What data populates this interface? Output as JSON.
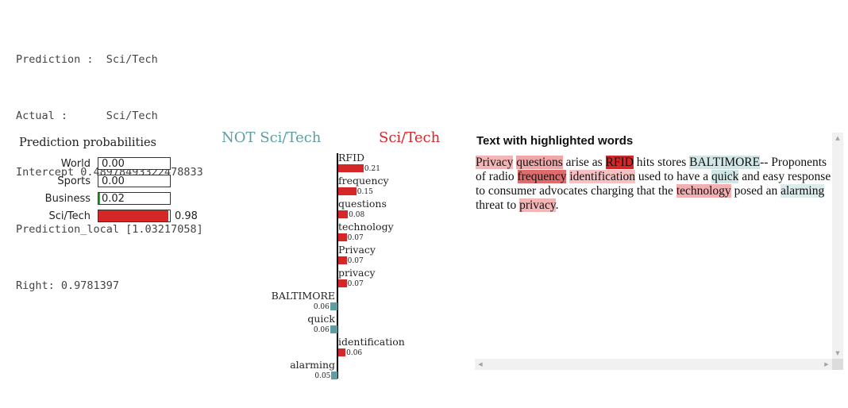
{
  "console": {
    "lines": [
      "Prediction :  Sci/Tech",
      "Actual :      Sci/Tech",
      "Intercept 0.48978493322478833",
      "Prediction_local [1.03217058]",
      "Right: 0.9781397"
    ]
  },
  "probabilities": {
    "title": "Prediction probabilities",
    "items": [
      {
        "label": "World",
        "value_text": "0.00",
        "value": 0.0,
        "color": "#3366cc"
      },
      {
        "label": "Sports",
        "value_text": "0.00",
        "value": 0.0,
        "color": "#ff9900"
      },
      {
        "label": "Business",
        "value_text": "0.02",
        "value": 0.02,
        "color": "#2ca02c"
      },
      {
        "label": "Sci/Tech",
        "value_text": "0.98",
        "value": 0.98,
        "color": "#d62728"
      }
    ]
  },
  "chart_data": {
    "type": "bar",
    "orientation": "horizontal",
    "negative_label": "NOT Sci/Tech",
    "positive_label": "Sci/Tech",
    "negative_color": "#5f9ea0",
    "positive_color": "#d62728",
    "features": [
      {
        "name": "RFID",
        "value": 0.21,
        "value_text": "0.21"
      },
      {
        "name": "frequency",
        "value": 0.15,
        "value_text": "0.15"
      },
      {
        "name": "questions",
        "value": 0.08,
        "value_text": "0.08"
      },
      {
        "name": "technology",
        "value": 0.07,
        "value_text": "0.07"
      },
      {
        "name": "Privacy",
        "value": 0.07,
        "value_text": "0.07"
      },
      {
        "name": "privacy",
        "value": 0.07,
        "value_text": "0.07"
      },
      {
        "name": "BALTIMORE",
        "value": -0.06,
        "value_text": "0.06"
      },
      {
        "name": "quick",
        "value": -0.06,
        "value_text": "0.06"
      },
      {
        "name": "identification",
        "value": 0.06,
        "value_text": "0.06"
      },
      {
        "name": "alarming",
        "value": -0.05,
        "value_text": "0.05"
      }
    ]
  },
  "highlighted_text": {
    "title": "Text with highlighted words",
    "segments": [
      {
        "text": "Privacy",
        "hl": "#f4b5b7"
      },
      {
        "text": " "
      },
      {
        "text": "questions",
        "hl": "#f0a7aa"
      },
      {
        "text": " arise as "
      },
      {
        "text": "RFID",
        "hl": "#d62728"
      },
      {
        "text": " hits stores "
      },
      {
        "text": "BALTIMORE",
        "hl": "#d2e6e6"
      },
      {
        "text": "-- Proponents of radio "
      },
      {
        "text": "frequency",
        "hl": "#e06b6d"
      },
      {
        "text": " "
      },
      {
        "text": "identification",
        "hl": "#f6c1c3"
      },
      {
        "text": " used to have a "
      },
      {
        "text": "quick",
        "hl": "#d2e6e6"
      },
      {
        "text": " and easy response to consumer advocates charging that the "
      },
      {
        "text": "technology",
        "hl": "#f2b0b2"
      },
      {
        "text": " posed an "
      },
      {
        "text": "alarming",
        "hl": "#dcebeb"
      },
      {
        "text": " threat to "
      },
      {
        "text": "privacy",
        "hl": "#f4b5b7"
      },
      {
        "text": "."
      }
    ]
  },
  "scrollbar": {
    "up_icon": "▲",
    "down_icon": "▼",
    "left_icon": "◀",
    "right_icon": "▶"
  }
}
